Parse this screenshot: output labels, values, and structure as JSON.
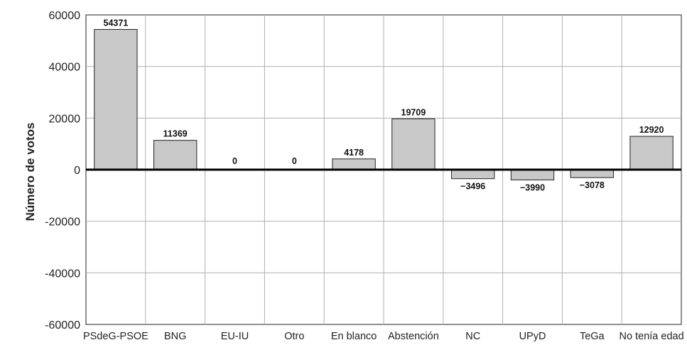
{
  "chart_data": {
    "type": "bar",
    "title": "",
    "xlabel": "",
    "ylabel": "Número de votos",
    "ylim": [
      -60000,
      60000
    ],
    "yticks": [
      60000,
      40000,
      20000,
      0,
      -20000,
      -40000,
      -60000
    ],
    "ytick_labels": [
      "60000",
      "40000",
      "20000",
      "0",
      "-20000",
      "-40000",
      "-60000"
    ],
    "categories": [
      "PSdeG-PSOE",
      "BNG",
      "EU-IU",
      "Otro",
      "En blanco",
      "Abstención",
      "NC",
      "UPyD",
      "TeGa",
      "No tenía edad"
    ],
    "values": [
      54371,
      11369,
      0,
      0,
      4178,
      19709,
      -3496,
      -3990,
      -3078,
      12920
    ],
    "data_labels": [
      "54371",
      "11369",
      "0",
      "0",
      "4178",
      "19709",
      "−3496",
      "−3990",
      "−3078",
      "12920"
    ],
    "grid": true,
    "legend": "none",
    "colors": {
      "bar": "#c8c8c8",
      "bar_edge": "#222222",
      "grid": "#b0b0b0",
      "zero_line": "#000000"
    }
  }
}
